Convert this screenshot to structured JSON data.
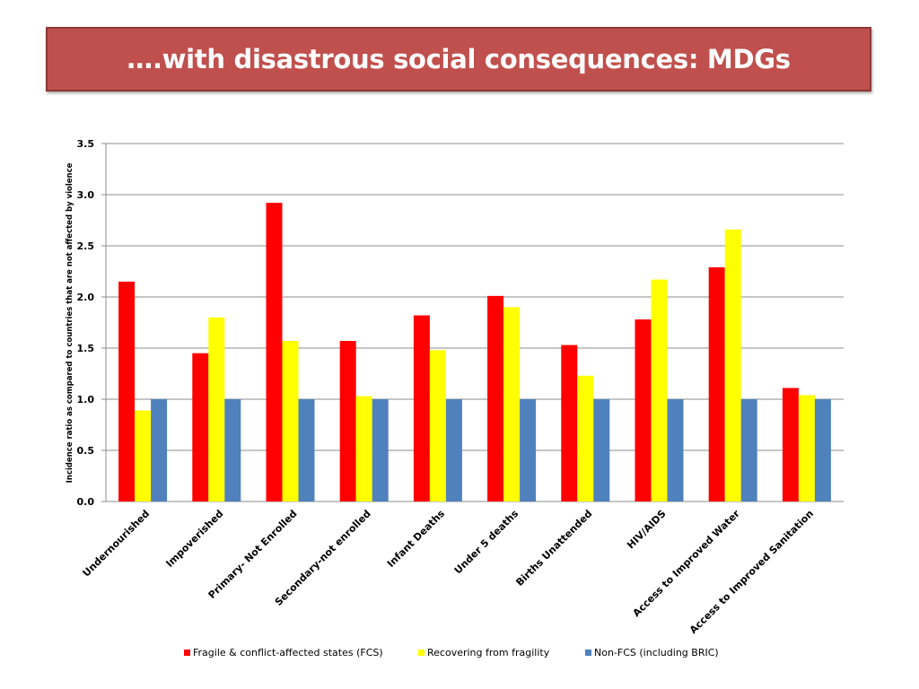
{
  "slide": {
    "title": "….with disastrous social consequences: MDGs",
    "title_bg_color": "#c0504d"
  },
  "chart_data": {
    "type": "bar",
    "title": "",
    "xlabel": "",
    "ylabel": "Incidence ratio as compared to countries that are not affected by violence",
    "ylim": [
      0,
      3.5
    ],
    "yticks": [
      "0.0",
      "0.5",
      "1.0",
      "1.5",
      "2.0",
      "2.5",
      "3.0",
      "3.5"
    ],
    "ytick_values": [
      0,
      0.5,
      1.0,
      1.5,
      2.0,
      2.5,
      3.0,
      3.5
    ],
    "grid": true,
    "legend_position": "bottom",
    "categories": [
      "Undernourished",
      "Impoverished",
      "Primary- Not Enrolled",
      "Secondary-not enrolled",
      "Infant Deaths",
      "Under 5 deaths",
      "Births Unattended",
      "HIV/AIDS",
      "Access to Improved Water",
      "Access to Improved Sanitation"
    ],
    "series": [
      {
        "name": "Fragile & conflict-affected states (FCS)",
        "color": "#ff0000",
        "values": [
          2.15,
          1.45,
          2.92,
          1.57,
          1.82,
          2.01,
          1.53,
          1.78,
          2.29,
          1.11
        ]
      },
      {
        "name": "Recovering from fragility",
        "color": "#ffff00",
        "values": [
          0.89,
          1.8,
          1.57,
          1.03,
          1.48,
          1.9,
          1.23,
          2.17,
          2.66,
          1.04
        ]
      },
      {
        "name": "Non-FCS (including BRIC)",
        "color": "#4f81bd",
        "values": [
          1.0,
          1.0,
          1.0,
          1.0,
          1.0,
          1.0,
          1.0,
          1.0,
          1.0,
          1.0
        ]
      }
    ]
  }
}
